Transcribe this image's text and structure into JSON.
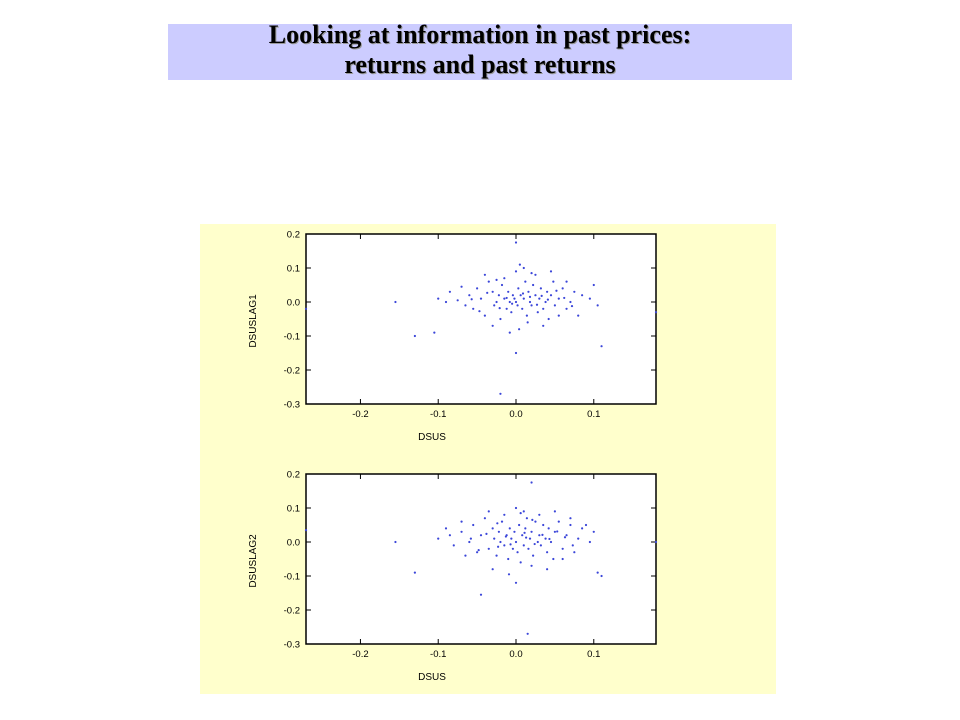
{
  "slide": {
    "title_line1": "Looking at information in past prices:",
    "title_line2": "returns and past returns",
    "title_band_color": "#ccccff",
    "panel_color": "#ffffcc"
  },
  "chart_data": [
    {
      "type": "scatter",
      "title": "",
      "xlabel": "DSUS",
      "ylabel": "DSUSLAG1",
      "xlim": [
        -0.27,
        0.18
      ],
      "ylim": [
        -0.3,
        0.2
      ],
      "x_ticks": [
        "-0.2",
        "-0.1",
        "0.0",
        "0.1"
      ],
      "x_tick_values": [
        -0.2,
        -0.1,
        0.0,
        0.1
      ],
      "y_ticks": [
        "0.2",
        "0.1",
        "0.0",
        "-0.1",
        "-0.2",
        "-0.3"
      ],
      "y_tick_values": [
        0.2,
        0.1,
        0.0,
        -0.1,
        -0.2,
        -0.3
      ],
      "grid": false,
      "marker_color": "#3b46d9",
      "points": [
        [
          0.0,
          0.175
        ],
        [
          -0.27,
          -0.02
        ],
        [
          0.18,
          -0.03
        ],
        [
          -0.155,
          0.0
        ],
        [
          -0.13,
          -0.1
        ],
        [
          -0.105,
          -0.09
        ],
        [
          -0.02,
          -0.27
        ],
        [
          -0.1,
          0.01
        ],
        [
          0.11,
          -0.13
        ],
        [
          0.1,
          0.05
        ],
        [
          0.105,
          -0.01
        ],
        [
          0.095,
          0.01
        ],
        [
          -0.09,
          0.0
        ],
        [
          -0.085,
          0.03
        ],
        [
          -0.075,
          0.005
        ],
        [
          -0.06,
          0.02
        ],
        [
          -0.055,
          -0.02
        ],
        [
          -0.05,
          0.04
        ],
        [
          -0.045,
          0.01
        ],
        [
          -0.04,
          -0.04
        ],
        [
          -0.035,
          0.06
        ],
        [
          -0.03,
          0.03
        ],
        [
          -0.028,
          -0.01
        ],
        [
          -0.025,
          0.0
        ],
        [
          -0.022,
          0.02
        ],
        [
          -0.02,
          -0.05
        ],
        [
          -0.018,
          0.05
        ],
        [
          -0.015,
          0.01
        ],
        [
          -0.012,
          -0.02
        ],
        [
          -0.01,
          0.03
        ],
        [
          -0.008,
          0.0
        ],
        [
          -0.006,
          -0.03
        ],
        [
          -0.004,
          0.02
        ],
        [
          -0.002,
          0.01
        ],
        [
          0.0,
          0.0
        ],
        [
          0.0,
          0.09
        ],
        [
          0.002,
          -0.01
        ],
        [
          0.003,
          0.04
        ],
        [
          0.004,
          -0.08
        ],
        [
          0.006,
          0.02
        ],
        [
          0.008,
          -0.02
        ],
        [
          0.01,
          0.01
        ],
        [
          0.012,
          0.06
        ],
        [
          0.014,
          -0.04
        ],
        [
          0.016,
          0.03
        ],
        [
          0.018,
          0.0
        ],
        [
          0.02,
          -0.01
        ],
        [
          0.022,
          0.05
        ],
        [
          0.025,
          0.02
        ],
        [
          0.028,
          -0.03
        ],
        [
          0.03,
          0.01
        ],
        [
          0.032,
          0.04
        ],
        [
          0.035,
          -0.02
        ],
        [
          0.038,
          0.0
        ],
        [
          0.04,
          0.03
        ],
        [
          0.042,
          -0.05
        ],
        [
          0.045,
          0.02
        ],
        [
          0.048,
          0.06
        ],
        [
          0.05,
          -0.01
        ],
        [
          0.055,
          0.01
        ],
        [
          0.06,
          0.04
        ],
        [
          0.065,
          -0.02
        ],
        [
          0.07,
          0.0
        ],
        [
          0.075,
          0.03
        ],
        [
          0.08,
          -0.04
        ],
        [
          0.085,
          0.02
        ],
        [
          -0.065,
          -0.01
        ],
        [
          -0.07,
          0.045
        ],
        [
          -0.04,
          0.08
        ],
        [
          -0.03,
          -0.07
        ],
        [
          -0.015,
          0.07
        ],
        [
          0.0,
          -0.15
        ],
        [
          0.005,
          0.11
        ],
        [
          0.015,
          -0.06
        ],
        [
          0.025,
          0.08
        ],
        [
          0.035,
          -0.07
        ],
        [
          0.045,
          0.09
        ],
        [
          0.055,
          -0.04
        ],
        [
          0.065,
          0.06
        ],
        [
          0.018,
          0.015
        ],
        [
          -0.005,
          -0.005
        ],
        [
          0.009,
          0.025
        ],
        [
          -0.012,
          0.012
        ],
        [
          0.027,
          -0.008
        ],
        [
          0.033,
          0.018
        ],
        [
          -0.021,
          -0.018
        ],
        [
          0.041,
          0.007
        ],
        [
          -0.037,
          0.027
        ],
        [
          0.052,
          0.033
        ],
        [
          -0.047,
          -0.027
        ],
        [
          0.062,
          0.012
        ],
        [
          -0.057,
          0.008
        ],
        [
          0.072,
          -0.012
        ],
        [
          0.01,
          0.1
        ],
        [
          -0.008,
          -0.09
        ],
        [
          0.02,
          0.085
        ],
        [
          -0.025,
          0.065
        ]
      ]
    },
    {
      "type": "scatter",
      "title": "",
      "xlabel": "DSUS",
      "ylabel": "DSUSLAG2",
      "xlim": [
        -0.27,
        0.18
      ],
      "ylim": [
        -0.3,
        0.2
      ],
      "x_ticks": [
        "-0.2",
        "-0.1",
        "0.0",
        "0.1"
      ],
      "x_tick_values": [
        -0.2,
        -0.1,
        0.0,
        0.1
      ],
      "y_ticks": [
        "0.2",
        "0.1",
        "0.0",
        "-0.1",
        "-0.2",
        "-0.3"
      ],
      "y_tick_values": [
        0.2,
        0.1,
        0.0,
        -0.1,
        -0.2,
        -0.3
      ],
      "grid": false,
      "marker_color": "#3b46d9",
      "points": [
        [
          0.02,
          0.175
        ],
        [
          -0.27,
          0.035
        ],
        [
          0.18,
          0.0
        ],
        [
          -0.155,
          0.0
        ],
        [
          -0.13,
          -0.09
        ],
        [
          -0.045,
          -0.155
        ],
        [
          0.015,
          -0.27
        ],
        [
          0.105,
          -0.09
        ],
        [
          0.11,
          -0.1
        ],
        [
          0.09,
          0.05
        ],
        [
          0.1,
          0.03
        ],
        [
          -0.1,
          0.01
        ],
        [
          -0.09,
          0.04
        ],
        [
          -0.08,
          -0.01
        ],
        [
          -0.07,
          0.03
        ],
        [
          -0.06,
          0.0
        ],
        [
          -0.055,
          0.05
        ],
        [
          -0.05,
          -0.03
        ],
        [
          -0.045,
          0.02
        ],
        [
          -0.04,
          0.07
        ],
        [
          -0.035,
          -0.02
        ],
        [
          -0.03,
          0.04
        ],
        [
          -0.028,
          0.01
        ],
        [
          -0.025,
          -0.04
        ],
        [
          -0.022,
          0.03
        ],
        [
          -0.02,
          0.0
        ],
        [
          -0.018,
          0.06
        ],
        [
          -0.015,
          -0.01
        ],
        [
          -0.012,
          0.02
        ],
        [
          -0.01,
          -0.05
        ],
        [
          -0.008,
          0.04
        ],
        [
          -0.006,
          0.01
        ],
        [
          -0.004,
          -0.02
        ],
        [
          -0.002,
          0.03
        ],
        [
          0.0,
          0.0
        ],
        [
          0.0,
          0.1
        ],
        [
          0.002,
          -0.03
        ],
        [
          0.004,
          0.05
        ],
        [
          0.006,
          -0.06
        ],
        [
          0.008,
          0.02
        ],
        [
          0.01,
          -0.01
        ],
        [
          0.012,
          0.04
        ],
        [
          0.014,
          0.07
        ],
        [
          0.016,
          -0.02
        ],
        [
          0.018,
          0.01
        ],
        [
          0.02,
          0.03
        ],
        [
          0.022,
          -0.04
        ],
        [
          0.025,
          0.06
        ],
        [
          0.028,
          0.0
        ],
        [
          0.03,
          0.02
        ],
        [
          0.032,
          -0.01
        ],
        [
          0.035,
          0.05
        ],
        [
          0.038,
          0.01
        ],
        [
          0.04,
          -0.03
        ],
        [
          0.042,
          0.04
        ],
        [
          0.045,
          0.0
        ],
        [
          0.048,
          -0.05
        ],
        [
          0.05,
          0.03
        ],
        [
          0.055,
          0.06
        ],
        [
          0.06,
          -0.02
        ],
        [
          0.065,
          0.02
        ],
        [
          0.07,
          0.05
        ],
        [
          0.075,
          -0.03
        ],
        [
          0.08,
          0.01
        ],
        [
          0.085,
          0.04
        ],
        [
          -0.065,
          -0.04
        ],
        [
          -0.07,
          0.06
        ],
        [
          -0.035,
          0.09
        ],
        [
          -0.03,
          -0.08
        ],
        [
          -0.015,
          0.08
        ],
        [
          0.0,
          -0.12
        ],
        [
          0.01,
          0.09
        ],
        [
          0.02,
          -0.07
        ],
        [
          0.03,
          0.08
        ],
        [
          0.04,
          -0.08
        ],
        [
          0.05,
          0.09
        ],
        [
          0.06,
          -0.05
        ],
        [
          0.07,
          0.07
        ],
        [
          0.013,
          0.013
        ],
        [
          -0.007,
          -0.007
        ],
        [
          0.011,
          0.027
        ],
        [
          -0.013,
          0.016
        ],
        [
          0.024,
          -0.006
        ],
        [
          0.034,
          0.021
        ],
        [
          -0.023,
          -0.014
        ],
        [
          0.043,
          0.009
        ],
        [
          -0.038,
          0.024
        ],
        [
          0.053,
          0.031
        ],
        [
          -0.048,
          -0.024
        ],
        [
          0.063,
          0.014
        ],
        [
          -0.058,
          0.01
        ],
        [
          0.073,
          -0.01
        ],
        [
          0.006,
          0.085
        ],
        [
          -0.009,
          -0.095
        ],
        [
          0.021,
          0.065
        ],
        [
          -0.024,
          0.055
        ],
        [
          0.095,
          0.0
        ],
        [
          -0.085,
          0.02
        ]
      ]
    }
  ]
}
